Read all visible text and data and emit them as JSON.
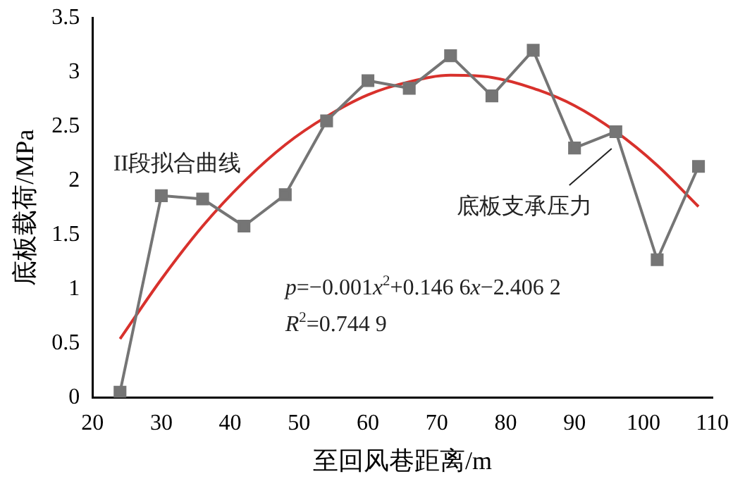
{
  "chart_data": {
    "type": "line",
    "xlabel": "至回风巷距离/m",
    "ylabel": "底板载荷/MPa",
    "x": [
      24,
      30,
      36,
      42,
      48,
      54,
      60,
      66,
      72,
      78,
      84,
      90,
      96,
      102,
      108
    ],
    "series": [
      {
        "name": "底板支承压力",
        "color": "#757575",
        "marker": "square",
        "values": [
          0.05,
          1.86,
          1.83,
          1.58,
          1.87,
          2.55,
          2.92,
          2.85,
          3.15,
          2.78,
          3.2,
          2.3,
          2.45,
          1.27,
          2.13
        ]
      },
      {
        "name": "II段拟合曲线",
        "color": "#d8312c",
        "marker": "none",
        "values": [
          0.54,
          1.09,
          1.58,
          1.99,
          2.33,
          2.59,
          2.79,
          2.91,
          2.97,
          2.95,
          2.85,
          2.69,
          2.45,
          2.14,
          1.76
        ]
      }
    ],
    "annotations": [
      "p=−0.001x$^{2}$+0.146 6x−2.406 2",
      "R$^{2}$=0.744 9"
    ],
    "xlim": [
      20,
      110
    ],
    "xticks": [
      20,
      30,
      40,
      50,
      60,
      70,
      80,
      90,
      100,
      110
    ],
    "ylim": [
      0,
      3.5
    ],
    "yticks": [
      0,
      0.5,
      1,
      1.5,
      2,
      2.5,
      3,
      3.5
    ],
    "grid": false,
    "legend": false
  }
}
